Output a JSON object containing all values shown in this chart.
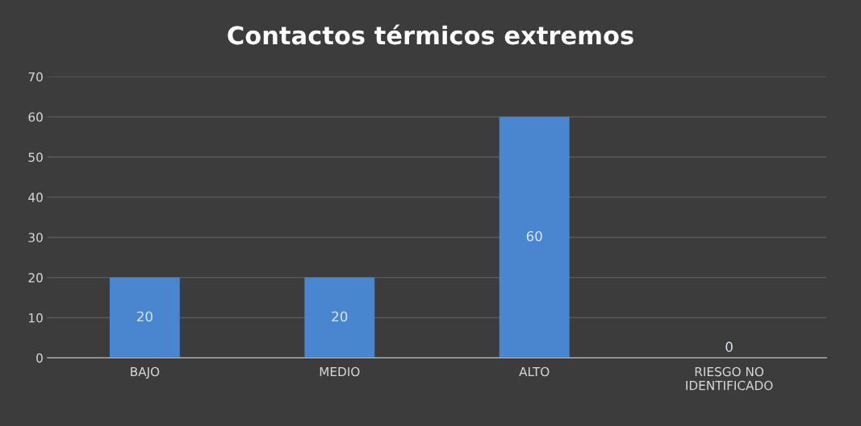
{
  "chart_data": {
    "type": "bar",
    "title": "Contactos térmicos extremos",
    "categories": [
      "BAJO",
      "MEDIO",
      "ALTO",
      "RIESGO NO\nIDENTIFICADO"
    ],
    "values": [
      20,
      20,
      60,
      0
    ],
    "color": "#4a86d0",
    "ylim": [
      0,
      70
    ],
    "yticks": [
      0,
      10,
      20,
      30,
      40,
      50,
      60,
      70
    ],
    "grid": "y",
    "data_labels": true
  }
}
